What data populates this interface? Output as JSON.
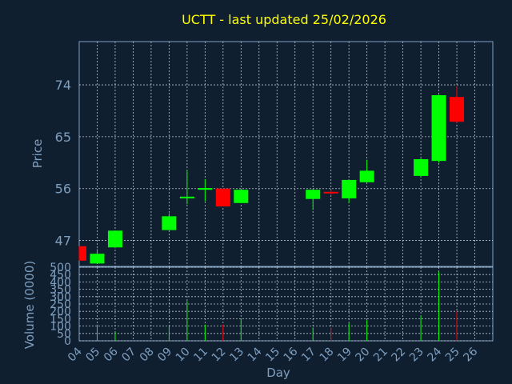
{
  "chart_data": {
    "type": "candlestick",
    "title": "UCTT - last updated 25/02/2026",
    "xlabel": "Day",
    "price_panel": {
      "ylabel": "Price",
      "yticks": [
        47,
        56,
        65,
        74
      ],
      "ylim": [
        42.5,
        81.5
      ]
    },
    "volume_panel": {
      "ylabel": "Volume (0000)",
      "yticks": [
        0,
        50,
        100,
        150,
        200,
        250,
        300,
        350,
        400,
        450,
        500
      ],
      "ylim": [
        0,
        500
      ]
    },
    "x_ticks": [
      "04",
      "05",
      "06",
      "07",
      "08",
      "09",
      "10",
      "11",
      "12",
      "13",
      "14",
      "15",
      "16",
      "17",
      "18",
      "19",
      "20",
      "21",
      "22",
      "23",
      "24",
      "25",
      "26"
    ],
    "grid": true,
    "candles": [
      {
        "day": "04",
        "open": 46.0,
        "close": 43.5,
        "high": 46.0,
        "low": 43.5,
        "volume": 0
      },
      {
        "day": "05",
        "open": 43.0,
        "close": 44.7,
        "high": 45.5,
        "low": 43.0,
        "volume": 110
      },
      {
        "day": "06",
        "open": 45.8,
        "close": 48.7,
        "high": 48.7,
        "low": 45.8,
        "volume": 60
      },
      {
        "day": "09",
        "open": 48.8,
        "close": 51.2,
        "high": 51.7,
        "low": 48.8,
        "volume": 100
      },
      {
        "day": "10",
        "open": 54.3,
        "close": 54.6,
        "high": 59.2,
        "low": 53.3,
        "volume": 270
      },
      {
        "day": "11",
        "open": 55.8,
        "close": 56.1,
        "high": 57.6,
        "low": 53.8,
        "volume": 110
      },
      {
        "day": "12",
        "open": 56.0,
        "close": 52.9,
        "high": 56.0,
        "low": 52.9,
        "volume": 110
      },
      {
        "day": "13",
        "open": 53.5,
        "close": 55.8,
        "high": 56.0,
        "low": 53.5,
        "volume": 150
      },
      {
        "day": "17",
        "open": 54.2,
        "close": 55.8,
        "high": 55.8,
        "low": 52.3,
        "volume": 90
      },
      {
        "day": "18",
        "open": 55.3,
        "close": 55.1,
        "high": 55.8,
        "low": 54.8,
        "volume": 90
      },
      {
        "day": "19",
        "open": 54.3,
        "close": 57.5,
        "high": 57.5,
        "low": 53.5,
        "volume": 120
      },
      {
        "day": "20",
        "open": 57.1,
        "close": 59.1,
        "high": 61.0,
        "low": 57.1,
        "volume": 140
      },
      {
        "day": "23",
        "open": 58.2,
        "close": 61.1,
        "high": 61.3,
        "low": 58.0,
        "volume": 170
      },
      {
        "day": "24",
        "open": 60.8,
        "close": 72.2,
        "high": 72.3,
        "low": 60.5,
        "volume": 470
      },
      {
        "day": "25",
        "open": 71.9,
        "close": 67.6,
        "high": 73.7,
        "low": 67.4,
        "volume": 200
      }
    ],
    "colors": {
      "up": "#00ff00",
      "down": "#ff0000",
      "background": "#0f1f30",
      "title": "#ffff00",
      "axis": "#7f9fbf",
      "grid": "#cfd8e0"
    }
  }
}
